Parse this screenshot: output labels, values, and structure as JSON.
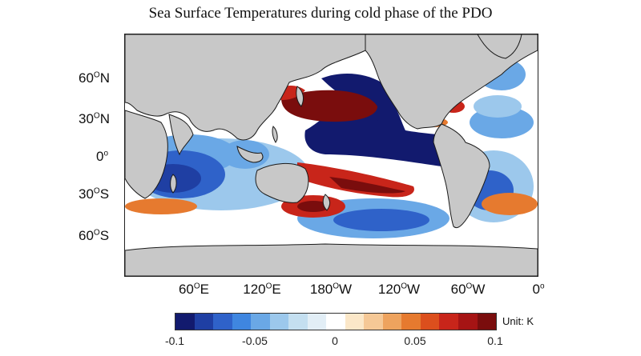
{
  "title": "Sea Surface Temperatures during cold phase of the PDO",
  "lat_labels": [
    {
      "deg": "60",
      "sym": "O",
      "hemi": "N"
    },
    {
      "deg": "30",
      "sym": "O",
      "hemi": "N"
    },
    {
      "deg": "0",
      "sym": "o",
      "hemi": ""
    },
    {
      "deg": "30",
      "sym": "O",
      "hemi": "S"
    },
    {
      "deg": "60",
      "sym": "O",
      "hemi": "S"
    }
  ],
  "lon_labels": [
    {
      "deg": "60",
      "sym": "O",
      "hemi": "E"
    },
    {
      "deg": "120",
      "sym": "O",
      "hemi": "E"
    },
    {
      "deg": "180",
      "sym": "O",
      "hemi": "W"
    },
    {
      "deg": "120",
      "sym": "O",
      "hemi": "W"
    },
    {
      "deg": "60",
      "sym": "O",
      "hemi": "W"
    },
    {
      "deg": "0",
      "sym": "o",
      "hemi": ""
    }
  ],
  "colorbar": {
    "colors": [
      "#121a6e",
      "#1f3fa3",
      "#2f62c9",
      "#3f86e0",
      "#6aa8e6",
      "#9cc8ec",
      "#c4dff0",
      "#e2eef6",
      "#ffffff",
      "#fbe7c8",
      "#f5c896",
      "#eea35e",
      "#e67a2f",
      "#dc4f1d",
      "#c8251a",
      "#a61414",
      "#7a0d0d"
    ],
    "tick_labels": [
      "-0.1",
      "-0.05",
      "0",
      "0.05",
      "0.1"
    ],
    "unit": "Unit: K"
  },
  "palette": {
    "land": "#c8c8c8",
    "coast": "#1a1a1a",
    "neutral": "#ffffff",
    "deep_blue": "#121a6e",
    "blue": "#2f62c9",
    "light_blue": "#9cc8ec",
    "deep_red": "#7a0d0d",
    "red": "#c8251a",
    "orange": "#e67a2f"
  }
}
